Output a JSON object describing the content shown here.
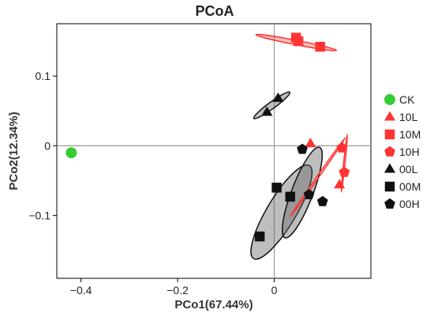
{
  "chart_data": {
    "type": "scatter",
    "title": "PCoA",
    "xlabel": "PCo1(67.44%)",
    "ylabel": "PCo2(12.34%)",
    "xlim": [
      -0.45,
      0.2
    ],
    "ylim": [
      -0.19,
      0.175
    ],
    "xticks": [
      -0.4,
      -0.2,
      0
    ],
    "xtick_labels": [
      "-0.4",
      "-0.2",
      "0"
    ],
    "yticks": [
      -0.1,
      0,
      0.1
    ],
    "ytick_labels": [
      "-0.1",
      "0",
      "0.1"
    ],
    "grid": false,
    "zero_lines": true,
    "legend_position": "right",
    "series": [
      {
        "name": "CK",
        "marker": "circle",
        "color": "#33cc33",
        "points": [
          [
            -0.42,
            -0.01
          ]
        ]
      },
      {
        "name": "10L",
        "marker": "triangle",
        "color": "#ff3333",
        "points": [
          [
            0.075,
            0.003
          ],
          [
            0.135,
            -0.056
          ]
        ]
      },
      {
        "name": "10M",
        "marker": "square",
        "color": "#ff3333",
        "points": [
          [
            0.045,
            0.155
          ],
          [
            0.05,
            0.15
          ],
          [
            0.095,
            0.142
          ]
        ]
      },
      {
        "name": "10H",
        "marker": "pentagon",
        "color": "#ff3333",
        "points": [
          [
            0.14,
            -0.003
          ],
          [
            0.145,
            -0.038
          ]
        ]
      },
      {
        "name": "00L",
        "marker": "triangle",
        "color": "#111111",
        "points": [
          [
            0.008,
            0.068
          ],
          [
            -0.015,
            0.048
          ]
        ]
      },
      {
        "name": "00M",
        "marker": "square",
        "color": "#111111",
        "points": [
          [
            -0.03,
            -0.13
          ],
          [
            0.005,
            -0.06
          ],
          [
            0.033,
            -0.073
          ]
        ]
      },
      {
        "name": "00H",
        "marker": "pentagon",
        "color": "#111111",
        "points": [
          [
            0.058,
            -0.005
          ],
          [
            0.072,
            -0.07
          ],
          [
            0.1,
            -0.08
          ]
        ]
      }
    ],
    "ellipses": [
      {
        "group": "10M",
        "color": "#ff3333",
        "center": [
          0.0455,
          0.148
        ],
        "rx": 0.085,
        "ry": 0.0045,
        "angle_deg": 11
      },
      {
        "group": "00L",
        "color": "#111111",
        "center": [
          -0.005,
          0.058
        ],
        "rx": 0.046,
        "ry": 0.007,
        "angle_deg": -36
      },
      {
        "group": "00M",
        "color": "#111111",
        "center": [
          0.015,
          -0.095
        ],
        "rx": 0.112,
        "ry": 0.03,
        "angle_deg": -59
      },
      {
        "group": "00H",
        "color": "#111111",
        "center": [
          0.058,
          -0.067
        ],
        "rx": 0.1,
        "ry": 0.022,
        "angle_deg": -69
      },
      {
        "group": "10L",
        "color": "#ff3333",
        "center": [
          0.09,
          -0.045
        ],
        "rx": 0.1,
        "ry": 0.002,
        "angle_deg": -55
      },
      {
        "group": "10H",
        "color": "#ff3333",
        "center": [
          0.145,
          -0.025
        ],
        "rx": 0.06,
        "ry": 0.0015,
        "angle_deg": -84
      }
    ]
  }
}
